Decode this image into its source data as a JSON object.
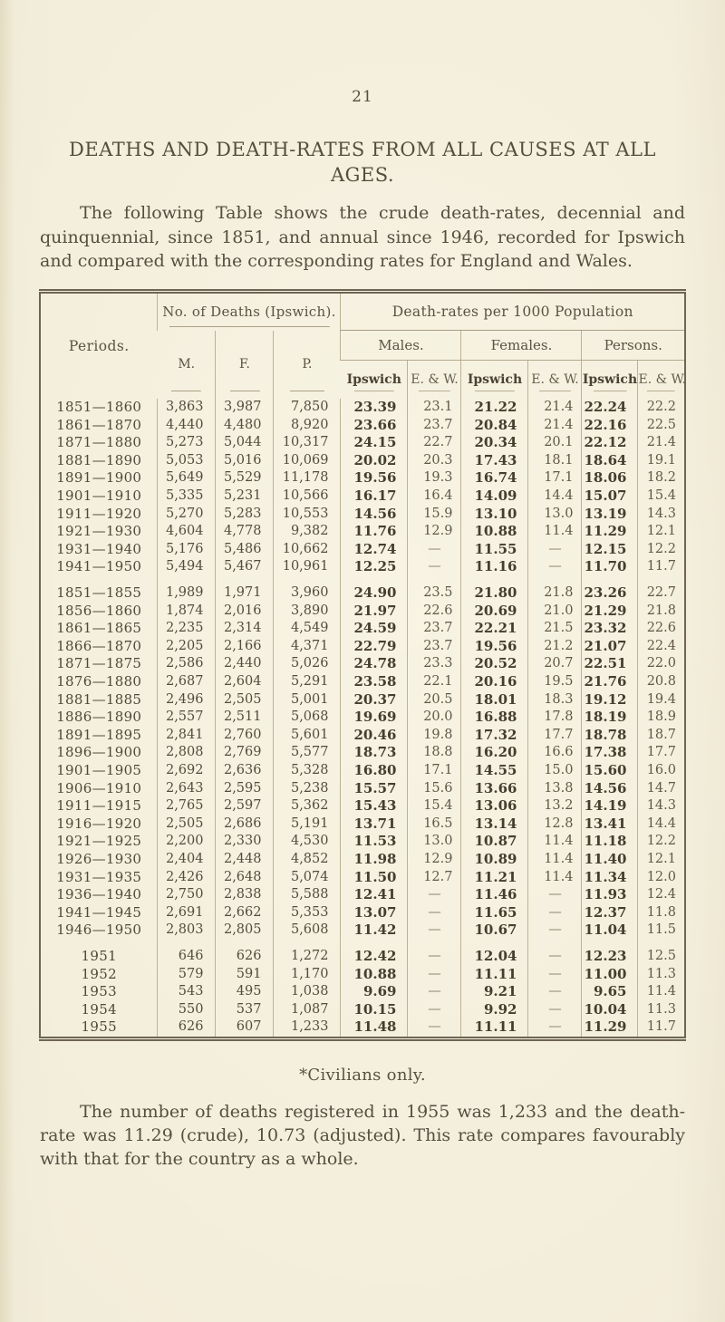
{
  "page": {
    "number": "21",
    "title": "DEATHS AND DEATH-RATES FROM ALL CAUSES AT ALL AGES.",
    "intro": "The following Table shows the crude death-rates, decennial and quinquennial, since 1851, and annual since 1946, recorded for Ipswich and compared with the corresponding rates for England and Wales.",
    "footnote": "*Civilians only.",
    "closing": "The number of deaths registered in 1955 was 1,233 and the death-rate was 11.29 (crude), 10.73 (adjusted).  This rate compares favourably with that for the country as a whole."
  },
  "table": {
    "headers": {
      "periods": "Periods.",
      "deaths_group": "No. of Deaths (Ipswich).",
      "rates_group": "Death-rates per 1000 Population",
      "deaths_cols": [
        "M.",
        "F.",
        "P."
      ],
      "rate_groups": [
        "Males.",
        "Females.",
        "Persons."
      ],
      "sub_ipswich": "Ipswich",
      "sub_ew": "E. & W."
    },
    "groups": [
      {
        "name": "decennial",
        "rows": [
          [
            "1851—1860",
            "3,863",
            "3,987",
            "7,850",
            "23.39",
            "23.1",
            "21.22",
            "21.4",
            "22.24",
            "22.2"
          ],
          [
            "1861—1870",
            "4,440",
            "4,480",
            "8,920",
            "23.66",
            "23.7",
            "20.84",
            "21.4",
            "22.16",
            "22.5"
          ],
          [
            "1871—1880",
            "5,273",
            "5,044",
            "10,317",
            "24.15",
            "22.7",
            "20.34",
            "20.1",
            "22.12",
            "21.4"
          ],
          [
            "1881—1890",
            "5,053",
            "5,016",
            "10,069",
            "20.02",
            "20.3",
            "17.43",
            "18.1",
            "18.64",
            "19.1"
          ],
          [
            "1891—1900",
            "5,649",
            "5,529",
            "11,178",
            "19.56",
            "19.3",
            "16.74",
            "17.1",
            "18.06",
            "18.2"
          ],
          [
            "1901—1910",
            "5,335",
            "5,231",
            "10,566",
            "16.17",
            "16.4",
            "14.09",
            "14.4",
            "15.07",
            "15.4"
          ],
          [
            "1911—1920",
            "5,270",
            "5,283",
            "10,553",
            "14.56",
            "15.9",
            "13.10",
            "13.0",
            "13.19",
            "14.3"
          ],
          [
            "1921—1930",
            "4,604",
            "4,778",
            "9,382",
            "11.76",
            "12.9",
            "10.88",
            "11.4",
            "11.29",
            "12.1"
          ],
          [
            "1931—1940",
            "5,176",
            "5,486",
            "10,662",
            "12.74",
            "—",
            "11.55",
            "—",
            "12.15",
            "12.2"
          ],
          [
            "1941—1950",
            "5,494",
            "5,467",
            "10,961",
            "12.25",
            "—",
            "11.16",
            "—",
            "11.70",
            "11.7"
          ]
        ]
      },
      {
        "name": "quinquennial",
        "rows": [
          [
            "1851—1855",
            "1,989",
            "1,971",
            "3,960",
            "24.90",
            "23.5",
            "21.80",
            "21.8",
            "23.26",
            "22.7"
          ],
          [
            "1856—1860",
            "1,874",
            "2,016",
            "3,890",
            "21.97",
            "22.6",
            "20.69",
            "21.0",
            "21.29",
            "21.8"
          ],
          [
            "1861—1865",
            "2,235",
            "2,314",
            "4,549",
            "24.59",
            "23.7",
            "22.21",
            "21.5",
            "23.32",
            "22.6"
          ],
          [
            "1866—1870",
            "2,205",
            "2,166",
            "4,371",
            "22.79",
            "23.7",
            "19.56",
            "21.2",
            "21.07",
            "22.4"
          ],
          [
            "1871—1875",
            "2,586",
            "2,440",
            "5,026",
            "24.78",
            "23.3",
            "20.52",
            "20.7",
            "22.51",
            "22.0"
          ],
          [
            "1876—1880",
            "2,687",
            "2,604",
            "5,291",
            "23.58",
            "22.1",
            "20.16",
            "19.5",
            "21.76",
            "20.8"
          ],
          [
            "1881—1885",
            "2,496",
            "2,505",
            "5,001",
            "20.37",
            "20.5",
            "18.01",
            "18.3",
            "19.12",
            "19.4"
          ],
          [
            "1886—1890",
            "2,557",
            "2,511",
            "5,068",
            "19.69",
            "20.0",
            "16.88",
            "17.8",
            "18.19",
            "18.9"
          ],
          [
            "1891—1895",
            "2,841",
            "2,760",
            "5,601",
            "20.46",
            "19.8",
            "17.32",
            "17.7",
            "18.78",
            "18.7"
          ],
          [
            "1896—1900",
            "2,808",
            "2,769",
            "5,577",
            "18.73",
            "18.8",
            "16.20",
            "16.6",
            "17.38",
            "17.7"
          ],
          [
            "1901—1905",
            "2,692",
            "2,636",
            "5,328",
            "16.80",
            "17.1",
            "14.55",
            "15.0",
            "15.60",
            "16.0"
          ],
          [
            "1906—1910",
            "2,643",
            "2,595",
            "5,238",
            "15.57",
            "15.6",
            "13.66",
            "13.8",
            "14.56",
            "14.7"
          ],
          [
            "1911—1915",
            "2,765",
            "2,597",
            "5,362",
            "15.43",
            "15.4",
            "13.06",
            "13.2",
            "14.19",
            "14.3"
          ],
          [
            "1916—1920",
            "2,505",
            "2,686",
            "5,191",
            "13.71",
            "16.5",
            "13.14",
            "12.8",
            "13.41",
            "14.4"
          ],
          [
            "1921—1925",
            "2,200",
            "2,330",
            "4,530",
            "11.53",
            "13.0",
            "10.87",
            "11.4",
            "11.18",
            "12.2"
          ],
          [
            "1926—1930",
            "2,404",
            "2,448",
            "4,852",
            "11.98",
            "12.9",
            "10.89",
            "11.4",
            "11.40",
            "12.1"
          ],
          [
            "1931—1935",
            "2,426",
            "2,648",
            "5,074",
            "11.50",
            "12.7",
            "11.21",
            "11.4",
            "11.34",
            "12.0"
          ],
          [
            "1936—1940",
            "2,750",
            "2,838",
            "5,588",
            "12.41",
            "—",
            "11.46",
            "—",
            "11.93",
            "12.4"
          ],
          [
            "1941—1945",
            "2,691",
            "2,662",
            "5,353",
            "13.07",
            "—",
            "11.65",
            "—",
            "12.37",
            "11.8"
          ],
          [
            "1946—1950",
            "2,803",
            "2,805",
            "5,608",
            "11.42",
            "—",
            "10.67",
            "—",
            "11.04",
            "11.5"
          ]
        ]
      },
      {
        "name": "annual",
        "rows": [
          [
            "1951",
            "646",
            "626",
            "1,272",
            "12.42",
            "—",
            "12.04",
            "—",
            "12.23",
            "12.5"
          ],
          [
            "1952",
            "579",
            "591",
            "1,170",
            "10.88",
            "—",
            "11.11",
            "—",
            "11.00",
            "11.3"
          ],
          [
            "1953",
            "543",
            "495",
            "1,038",
            "9.69",
            "—",
            "9.21",
            "—",
            "9.65",
            "11.4"
          ],
          [
            "1954",
            "550",
            "537",
            "1,087",
            "10.15",
            "—",
            "9.92",
            "—",
            "10.04",
            "11.3"
          ],
          [
            "1955",
            "626",
            "607",
            "1,233",
            "11.48",
            "—",
            "11.11",
            "—",
            "11.29",
            "11.7"
          ]
        ]
      }
    ]
  }
}
